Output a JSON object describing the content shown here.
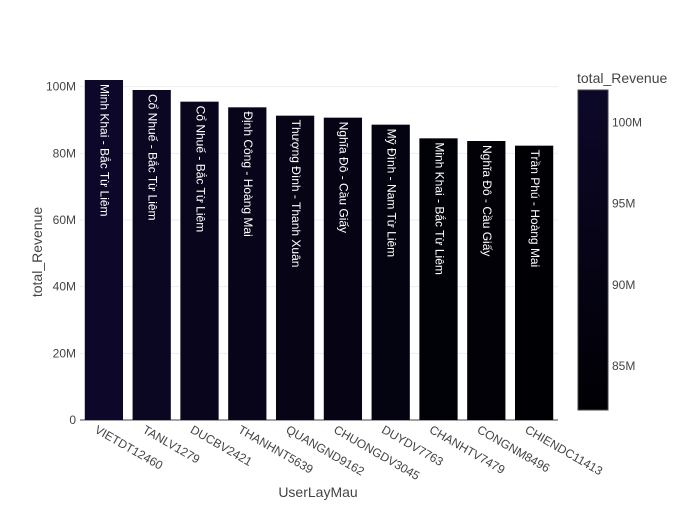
{
  "chart_data": {
    "type": "bar",
    "xlabel": "UserLayMau",
    "ylabel": "total_Revenue",
    "ylim": [
      0,
      105000000
    ],
    "yticks": [
      0,
      20000000,
      40000000,
      60000000,
      80000000,
      100000000
    ],
    "ytick_labels": [
      "0",
      "20M",
      "40M",
      "60M",
      "80M",
      "100M"
    ],
    "grid": true,
    "categories": [
      "VIETDT12460",
      "TANLV1279",
      "DUCBV2421",
      "THANHNT5639",
      "QUANGND9162",
      "CHUONGDV3045",
      "DUYDV7763",
      "CHANHTV7479",
      "CONGNM8496",
      "CHIENDC11413"
    ],
    "values": [
      102000000,
      99000000,
      95500000,
      93800000,
      91300000,
      90700000,
      88600000,
      84500000,
      83700000,
      82300000
    ],
    "bar_text": [
      "Minh Khai - Bắc Từ Liêm",
      "Cổ Nhuế - Bắc Từ Liêm",
      "Cổ Nhuế - Bắc Từ Liêm",
      "Định Công - Hoàng Mai",
      "Thượng Đình - Thanh Xuân",
      "Nghĩa Đô - Cầu Giấy",
      "Mỹ Đình - Nam Từ Liêm",
      "Minh Khai - Bắc Từ Liêm",
      "Nghĩa Đô - Cầu Giấy",
      "Trần Phú - Hoàng Mai"
    ],
    "colorbar": {
      "title": "total_Revenue",
      "range": [
        82300000,
        102000000
      ],
      "ticks": [
        85000000,
        90000000,
        95000000,
        100000000
      ],
      "tick_labels": [
        "85M",
        "90M",
        "95M",
        "100M"
      ],
      "color_low": "#000004",
      "color_high": "#0d0829"
    },
    "colors": {
      "bar_text": "#ffffff",
      "axis_text": "#444444",
      "grid": "#eeeeee"
    }
  }
}
